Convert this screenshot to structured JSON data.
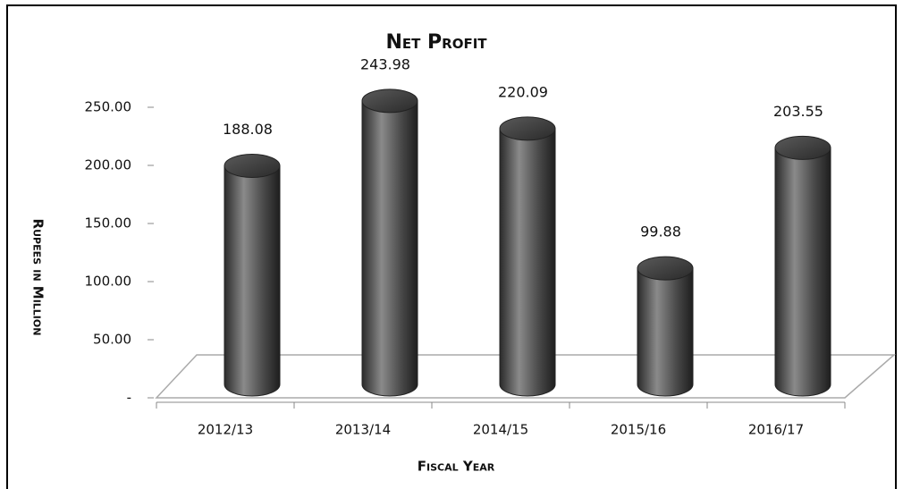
{
  "chart_data": {
    "type": "bar",
    "title": "Net Profit",
    "x_label": "Fiscal Year",
    "y_label": "Rupees in Million",
    "categories": [
      "2012/13",
      "2013/14",
      "2014/15",
      "2015/16",
      "2016/17"
    ],
    "values": [
      188.08,
      243.98,
      220.09,
      99.88,
      203.55
    ],
    "color": "#555555",
    "ylim": [
      0,
      250
    ],
    "yticks": [
      {
        "value": 0,
        "label": "-"
      },
      {
        "value": 50,
        "label": "50.00"
      },
      {
        "value": 100,
        "label": "100.00"
      },
      {
        "value": 150,
        "label": "150.00"
      },
      {
        "value": 200,
        "label": "200.00"
      },
      {
        "value": 250,
        "label": "250.00"
      }
    ]
  }
}
